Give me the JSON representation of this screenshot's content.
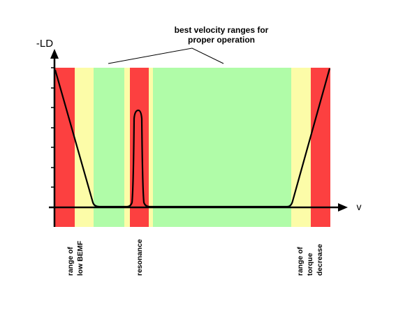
{
  "header": {
    "line1": "best velocity ranges for",
    "line2": "proper operation"
  },
  "axes": {
    "y_label": "-LD",
    "x_label": "v"
  },
  "zones": [
    {
      "kind": "red",
      "color": "#fc4040"
    },
    {
      "kind": "yellow",
      "color": "#fcfca8"
    },
    {
      "kind": "green",
      "color": "#b0fca8"
    },
    {
      "kind": "yellow",
      "color": "#fcfca8"
    },
    {
      "kind": "red",
      "color": "#fc4040"
    },
    {
      "kind": "yellow",
      "color": "#fcfca8"
    },
    {
      "kind": "green",
      "color": "#b0fca8"
    },
    {
      "kind": "yellow",
      "color": "#fcfca8"
    },
    {
      "kind": "red",
      "color": "#fc4040"
    }
  ],
  "range_labels": {
    "low_bemf": {
      "line1": "range of",
      "line2": "low BEMF"
    },
    "resonance": {
      "line1": "resonance"
    },
    "torque_decrease": {
      "line1": "range of",
      "line2": "torque",
      "line3": "decrease"
    }
  },
  "colors": {
    "red": "#fc4040",
    "yellow": "#fcfca8",
    "green": "#b0fca8",
    "line": "#000000"
  }
}
